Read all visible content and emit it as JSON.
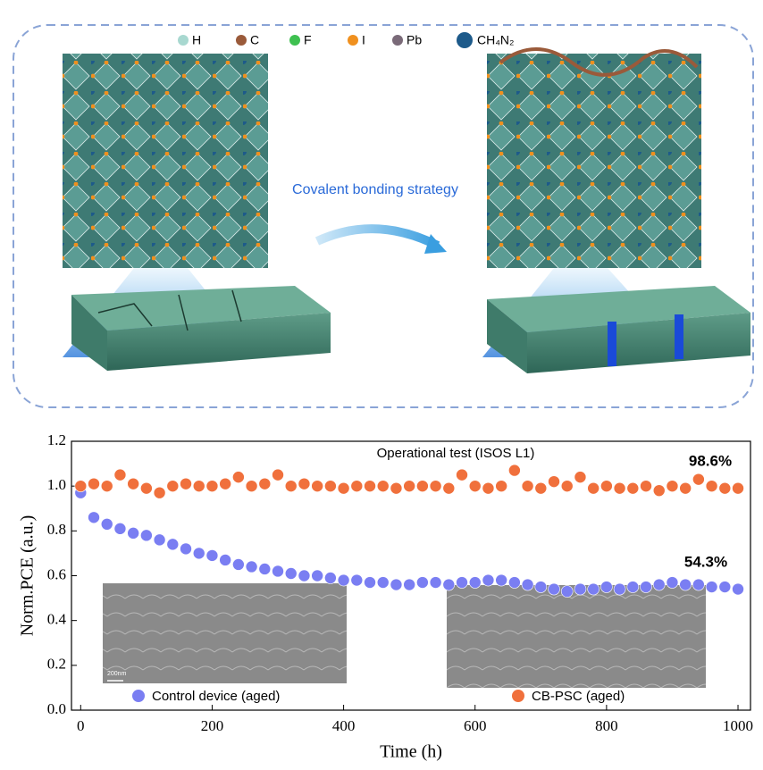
{
  "illustration": {
    "legend": [
      "H",
      "C",
      "F",
      "I",
      "Pb",
      "CH₄N₂"
    ],
    "arrow_label": "Covalent bonding strategy",
    "scale_bar": "200nm"
  },
  "chart_data": {
    "type": "scatter",
    "title": "Operational test (ISOS L1)",
    "x_label": "Time (h)",
    "y_label": "Norm.PCE (a.u.)",
    "xlim": [
      -14,
      1019
    ],
    "ylim": [
      0,
      1.2
    ],
    "xticks": [
      0,
      200,
      400,
      600,
      800,
      1000
    ],
    "yticks": [
      {
        "value": 0,
        "label": "0.0"
      },
      0.2,
      0.4,
      0.6,
      0.8,
      {
        "value": 1,
        "label": "1.0"
      },
      1.2
    ],
    "legend": "bottom",
    "annotations": [
      "98.6%",
      "54.3%"
    ],
    "x": [
      0,
      20,
      40,
      60,
      80,
      100,
      120,
      140,
      160,
      180,
      200,
      220,
      240,
      260,
      280,
      300,
      320,
      340,
      360,
      380,
      400,
      420,
      440,
      460,
      480,
      500,
      520,
      540,
      560,
      580,
      600,
      620,
      640,
      660,
      680,
      700,
      720,
      740,
      760,
      780,
      800,
      820,
      840,
      860,
      880,
      900,
      920,
      940,
      960,
      980,
      1000
    ],
    "series": [
      {
        "name": "Control device (aged)",
        "color": "#7a7ef2",
        "values": [
          0.97,
          0.86,
          0.83,
          0.81,
          0.79,
          0.78,
          0.76,
          0.74,
          0.72,
          0.7,
          0.69,
          0.67,
          0.65,
          0.64,
          0.63,
          0.62,
          0.61,
          0.6,
          0.6,
          0.59,
          0.58,
          0.58,
          0.57,
          0.57,
          0.56,
          0.56,
          0.57,
          0.57,
          0.56,
          0.57,
          0.57,
          0.58,
          0.58,
          0.57,
          0.56,
          0.55,
          0.54,
          0.53,
          0.54,
          0.54,
          0.55,
          0.54,
          0.55,
          0.55,
          0.56,
          0.57,
          0.56,
          0.56,
          0.55,
          0.55,
          0.54
        ]
      },
      {
        "name": "CB-PSC (aged)",
        "color": "#f0703c",
        "values": [
          1.0,
          1.01,
          1.0,
          1.05,
          1.01,
          0.99,
          0.97,
          1.0,
          1.01,
          1.0,
          1.0,
          1.01,
          1.04,
          1.0,
          1.01,
          1.05,
          1.0,
          1.01,
          1.0,
          1.0,
          0.99,
          1.0,
          1.0,
          1.0,
          0.99,
          1.0,
          1.0,
          1.0,
          0.99,
          1.05,
          1.0,
          0.99,
          1.0,
          1.07,
          1.0,
          0.99,
          1.02,
          1.0,
          1.04,
          0.99,
          1.0,
          0.99,
          0.99,
          1.0,
          0.98,
          1.0,
          0.99,
          1.03,
          1.0,
          0.99,
          0.99
        ]
      }
    ]
  }
}
